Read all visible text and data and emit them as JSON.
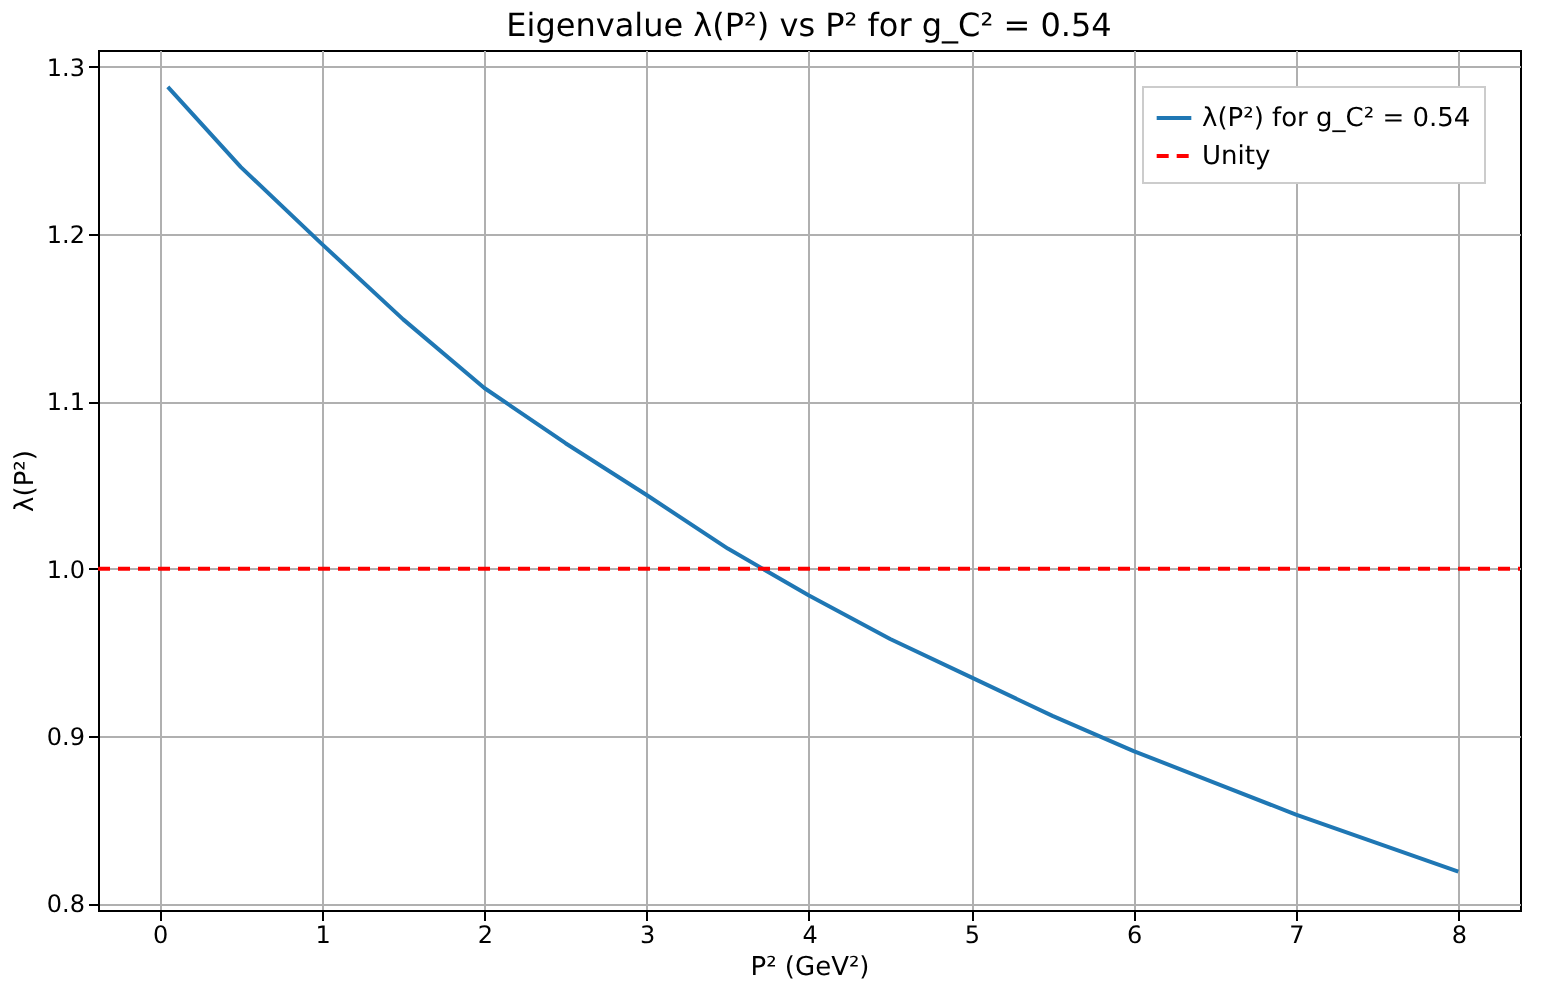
{
  "chart_data": {
    "type": "line",
    "title": "Eigenvalue λ(P²) vs P² for g_C² = 0.54",
    "xlabel": "P² (GeV²)",
    "ylabel": "λ(P²)",
    "x": [
      0.05,
      0.5,
      1,
      1.5,
      2,
      2.5,
      3,
      3.5,
      4,
      4.5,
      5,
      5.5,
      6,
      6.5,
      7,
      7.5,
      8
    ],
    "series": [
      {
        "name": "λ(P²) for g_C² = 0.54",
        "color": "#1f77b4",
        "line_style": "solid",
        "values": [
          1.288,
          1.24,
          1.194,
          1.149,
          1.108,
          1.075,
          1.044,
          1.012,
          0.984,
          0.958,
          0.935,
          0.912,
          0.891,
          0.872,
          0.853,
          0.836,
          0.819
        ]
      }
    ],
    "ref_lines": [
      {
        "axis": "y",
        "value": 1.0,
        "label": "Unity",
        "color": "#ff0000",
        "line_style": "dashed"
      }
    ],
    "xlim": [
      -0.38,
      8.38
    ],
    "ylim": [
      0.796,
      1.31
    ],
    "xticks": [
      0,
      1,
      2,
      3,
      4,
      5,
      6,
      7,
      8
    ],
    "yticks": [
      0.8,
      0.9,
      {
        "value": 1,
        "label": "1.0"
      },
      1.1,
      1.2,
      1.3
    ],
    "grid": true,
    "legend": "top right",
    "marker": "none"
  }
}
